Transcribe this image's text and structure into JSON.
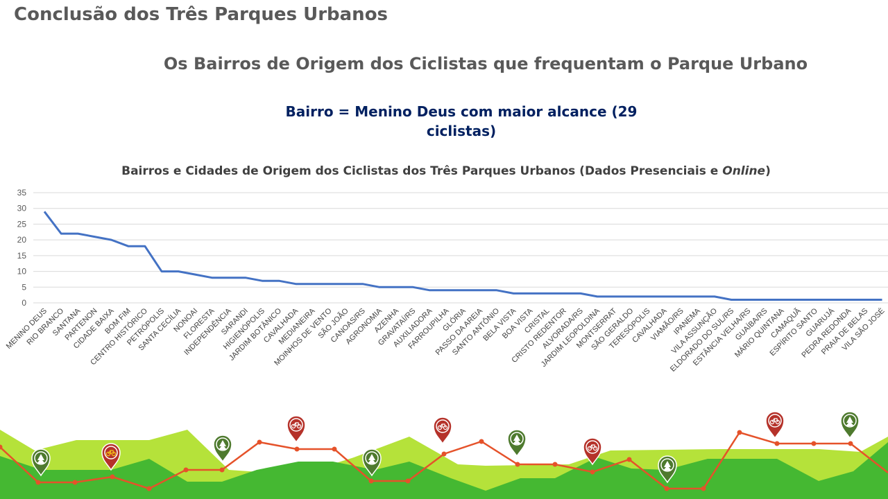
{
  "slide": {
    "title": "Conclusão dos Três Parques Urbanos",
    "subtitle": "Os Bairros de Origem dos Ciclistas que frequentam o Parque Urbano",
    "highlight_line1": "Bairro = Menino Deus com maior alcance (29",
    "highlight_line2": "ciclistas)"
  },
  "colors": {
    "line": "#4472C4",
    "grid": "#D9D9D9",
    "title": "#595959",
    "highlight": "#002060",
    "route": "#E5522A",
    "hill_light": "#B5E23A",
    "hill_dark": "#45B832",
    "pin_red": "#B5322A",
    "pin_green": "#4E7A2E"
  },
  "chart_data": {
    "type": "line",
    "title_before": "Bairros e Cidades de Origem dos Ciclistas dos Três Parques Urbanos (Dados Presenciais e ",
    "title_italic": "Online",
    "title_after": ")",
    "ylim": [
      0,
      35
    ],
    "yticks": [
      0,
      5,
      10,
      15,
      20,
      25,
      30,
      35
    ],
    "grid": true,
    "legend": "none",
    "categories": [
      "MENINO DEUS",
      "RIO BRANCO",
      "SANTANA",
      "PARTENON",
      "CIDADE BAIXA",
      "BOM FIM",
      "CENTRO HISTÓRICO",
      "PETRÓPOLIS",
      "SANTA CECÍLIA",
      "NONOAI",
      "FLORESTA",
      "INDEPENDÊNCIA",
      "SARANDI",
      "HIGIENÓPOLIS",
      "JARDIM BOTÂNICO",
      "CAVALHADA",
      "MEDIANEIRA",
      "MOINHOS DE VENTO",
      "SÃO JOÃO",
      "CANOAS/RS",
      "AGRONOMIA",
      "AZENHA",
      "GRAVATAÍ/RS",
      "AUXILIADORA",
      "FARROUPILHA",
      "GLÓRIA",
      "PASSO DA AREIA",
      "SANTO ANTÔNIO",
      "BELA VISTA",
      "BOA VISTA",
      "CRISTAL",
      "CRISTO REDENTOR",
      "ALVORADA/RS",
      "JARDIM LEOPOLDINA",
      "MONTSERRAT",
      "SÃO GERALDO",
      "TERESÓPOLIS",
      "CAVALHADA",
      "VIAMÃO/RS",
      "IPANEMA",
      "VILA ASSUNÇÃO",
      "ELDORADO DO SUL/RS",
      "ESTÂNCIA VELHA/RS",
      "GUAÍBA/RS",
      "MÁRIO QUINTANA",
      "CAMAQUÃ",
      "ESPÍRITO SANTO",
      "GUARUJÁ",
      "PEDRA REDONDA",
      "PRAIA DE BELAS",
      "VILA SÃO JOSÉ"
    ],
    "series": [
      {
        "values": [
          29,
          22,
          22,
          21,
          20,
          18,
          18,
          10,
          10,
          9,
          8,
          8,
          8,
          7,
          7,
          6,
          6,
          6,
          6,
          6,
          5,
          5,
          5,
          4,
          4,
          4,
          4,
          4,
          3,
          3,
          3,
          3,
          3,
          2,
          2,
          2,
          2,
          2,
          2,
          2,
          2,
          1,
          1,
          1,
          1,
          1,
          1,
          1,
          1,
          1,
          1
        ]
      }
    ]
  }
}
